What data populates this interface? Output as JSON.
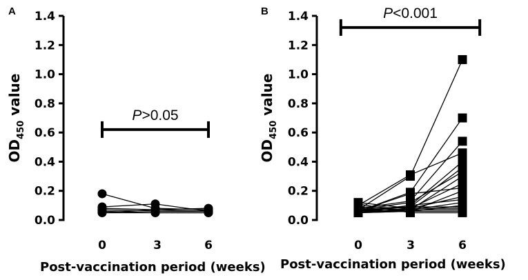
{
  "chart_data": [
    {
      "type": "line",
      "panel": "A",
      "ylabel_main": "OD",
      "ylabel_sub": "450",
      "ylabel_tail": " value",
      "xlabel": "Post-vaccination period (weeks)",
      "categories": [
        "0",
        "3",
        "6"
      ],
      "x": [
        0,
        3,
        6
      ],
      "ylim": [
        0,
        1.4
      ],
      "yticks": [
        0.0,
        0.2,
        0.4,
        0.6,
        0.8,
        1.0,
        1.2,
        1.4
      ],
      "ytick_labels": [
        "0.0",
        "0.2",
        "0.4",
        "0.6",
        "0.8",
        "1.0",
        "1.2",
        "1.4"
      ],
      "marker": "circle",
      "significance": {
        "p_italic": "P",
        "p_rest": ">0.05",
        "y": 0.62,
        "from_x": 0,
        "to_x": 6
      },
      "series": [
        {
          "name": "s1",
          "values": [
            0.18,
            0.08,
            0.07
          ]
        },
        {
          "name": "s2",
          "values": [
            0.09,
            0.11,
            0.06
          ]
        },
        {
          "name": "s3",
          "values": [
            0.08,
            0.07,
            0.08
          ]
        },
        {
          "name": "s4",
          "values": [
            0.07,
            0.06,
            0.06
          ]
        },
        {
          "name": "s5",
          "values": [
            0.06,
            0.05,
            0.05
          ]
        },
        {
          "name": "s6",
          "values": [
            0.05,
            0.07,
            0.06
          ]
        },
        {
          "name": "s7",
          "values": [
            0.05,
            0.05,
            0.05
          ]
        }
      ]
    },
    {
      "type": "line",
      "panel": "B",
      "ylabel_main": "OD",
      "ylabel_sub": "450",
      "ylabel_tail": " value",
      "xlabel": "Post-vaccination period (weeks)",
      "categories": [
        "0",
        "3",
        "6"
      ],
      "x": [
        0,
        3,
        6
      ],
      "ylim": [
        0,
        1.4
      ],
      "yticks": [
        0.0,
        0.2,
        0.4,
        0.6,
        0.8,
        1.0,
        1.2,
        1.4
      ],
      "ytick_labels": [
        "0.0",
        "0.2",
        "0.4",
        "0.6",
        "0.8",
        "1.0",
        "1.2",
        "1.4"
      ],
      "marker": "square",
      "significance": {
        "p_italic": "P",
        "p_rest": "<0.001",
        "y": 1.32,
        "from_x": -1,
        "to_x": 7
      },
      "series": [
        {
          "name": "s1",
          "values": [
            0.07,
            0.3,
            1.1
          ]
        },
        {
          "name": "s2",
          "values": [
            0.06,
            0.19,
            0.7
          ]
        },
        {
          "name": "s3",
          "values": [
            0.08,
            0.13,
            0.54
          ]
        },
        {
          "name": "s4",
          "values": [
            0.1,
            0.31,
            0.46
          ]
        },
        {
          "name": "s5",
          "values": [
            0.05,
            0.1,
            0.4
          ]
        },
        {
          "name": "s6",
          "values": [
            0.06,
            0.09,
            0.36
          ]
        },
        {
          "name": "s7",
          "values": [
            0.07,
            0.12,
            0.33
          ]
        },
        {
          "name": "s8",
          "values": [
            0.05,
            0.07,
            0.3
          ]
        },
        {
          "name": "s9",
          "values": [
            0.09,
            0.08,
            0.25
          ]
        },
        {
          "name": "s10",
          "values": [
            0.06,
            0.18,
            0.22
          ]
        },
        {
          "name": "s11",
          "values": [
            0.07,
            0.06,
            0.2
          ]
        },
        {
          "name": "s12",
          "values": [
            0.05,
            0.08,
            0.16
          ]
        },
        {
          "name": "s13",
          "values": [
            0.06,
            0.1,
            0.14
          ]
        },
        {
          "name": "s14",
          "values": [
            0.08,
            0.07,
            0.12
          ]
        },
        {
          "name": "s15",
          "values": [
            0.05,
            0.06,
            0.1
          ]
        },
        {
          "name": "s16",
          "values": [
            0.07,
            0.09,
            0.09
          ]
        },
        {
          "name": "s17",
          "values": [
            0.12,
            0.08,
            0.08
          ]
        },
        {
          "name": "s18",
          "values": [
            0.06,
            0.07,
            0.07
          ]
        },
        {
          "name": "s19",
          "values": [
            0.05,
            0.06,
            0.06
          ]
        },
        {
          "name": "s20",
          "values": [
            0.11,
            0.05,
            0.05
          ]
        }
      ]
    }
  ]
}
